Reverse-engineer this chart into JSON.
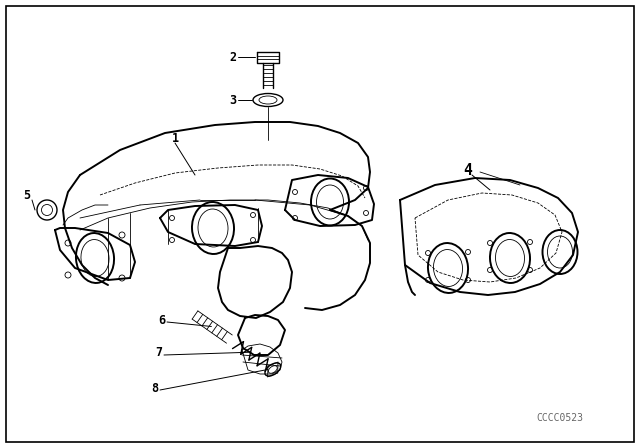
{
  "bg_color": "#ffffff",
  "border_color": "#000000",
  "line_color": "#000000",
  "watermark": "CCCC0523",
  "label_fontsize": 8.5,
  "watermark_fontsize": 7,
  "figsize": [
    6.4,
    4.48
  ],
  "dpi": 100
}
